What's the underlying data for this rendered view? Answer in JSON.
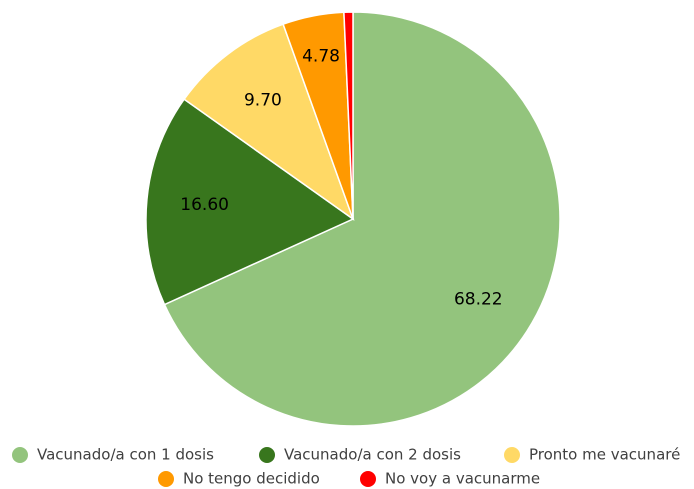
{
  "chart_data": {
    "type": "pie",
    "categories": [
      "Vacunado/a con 1 dosis",
      "Vacunado/a con 2 dosis",
      "Pronto me vacunaré",
      "No tengo decidido",
      "No voy a vacunarme"
    ],
    "values": [
      68.22,
      16.6,
      9.7,
      4.78,
      0.7
    ],
    "value_labels": [
      "68.22",
      "16.60",
      "9.70",
      "4.78",
      null
    ],
    "colors": [
      "#93c47d",
      "#38761d",
      "#ffd966",
      "#ff9900",
      "#ff0000"
    ],
    "legend": "bottom"
  }
}
